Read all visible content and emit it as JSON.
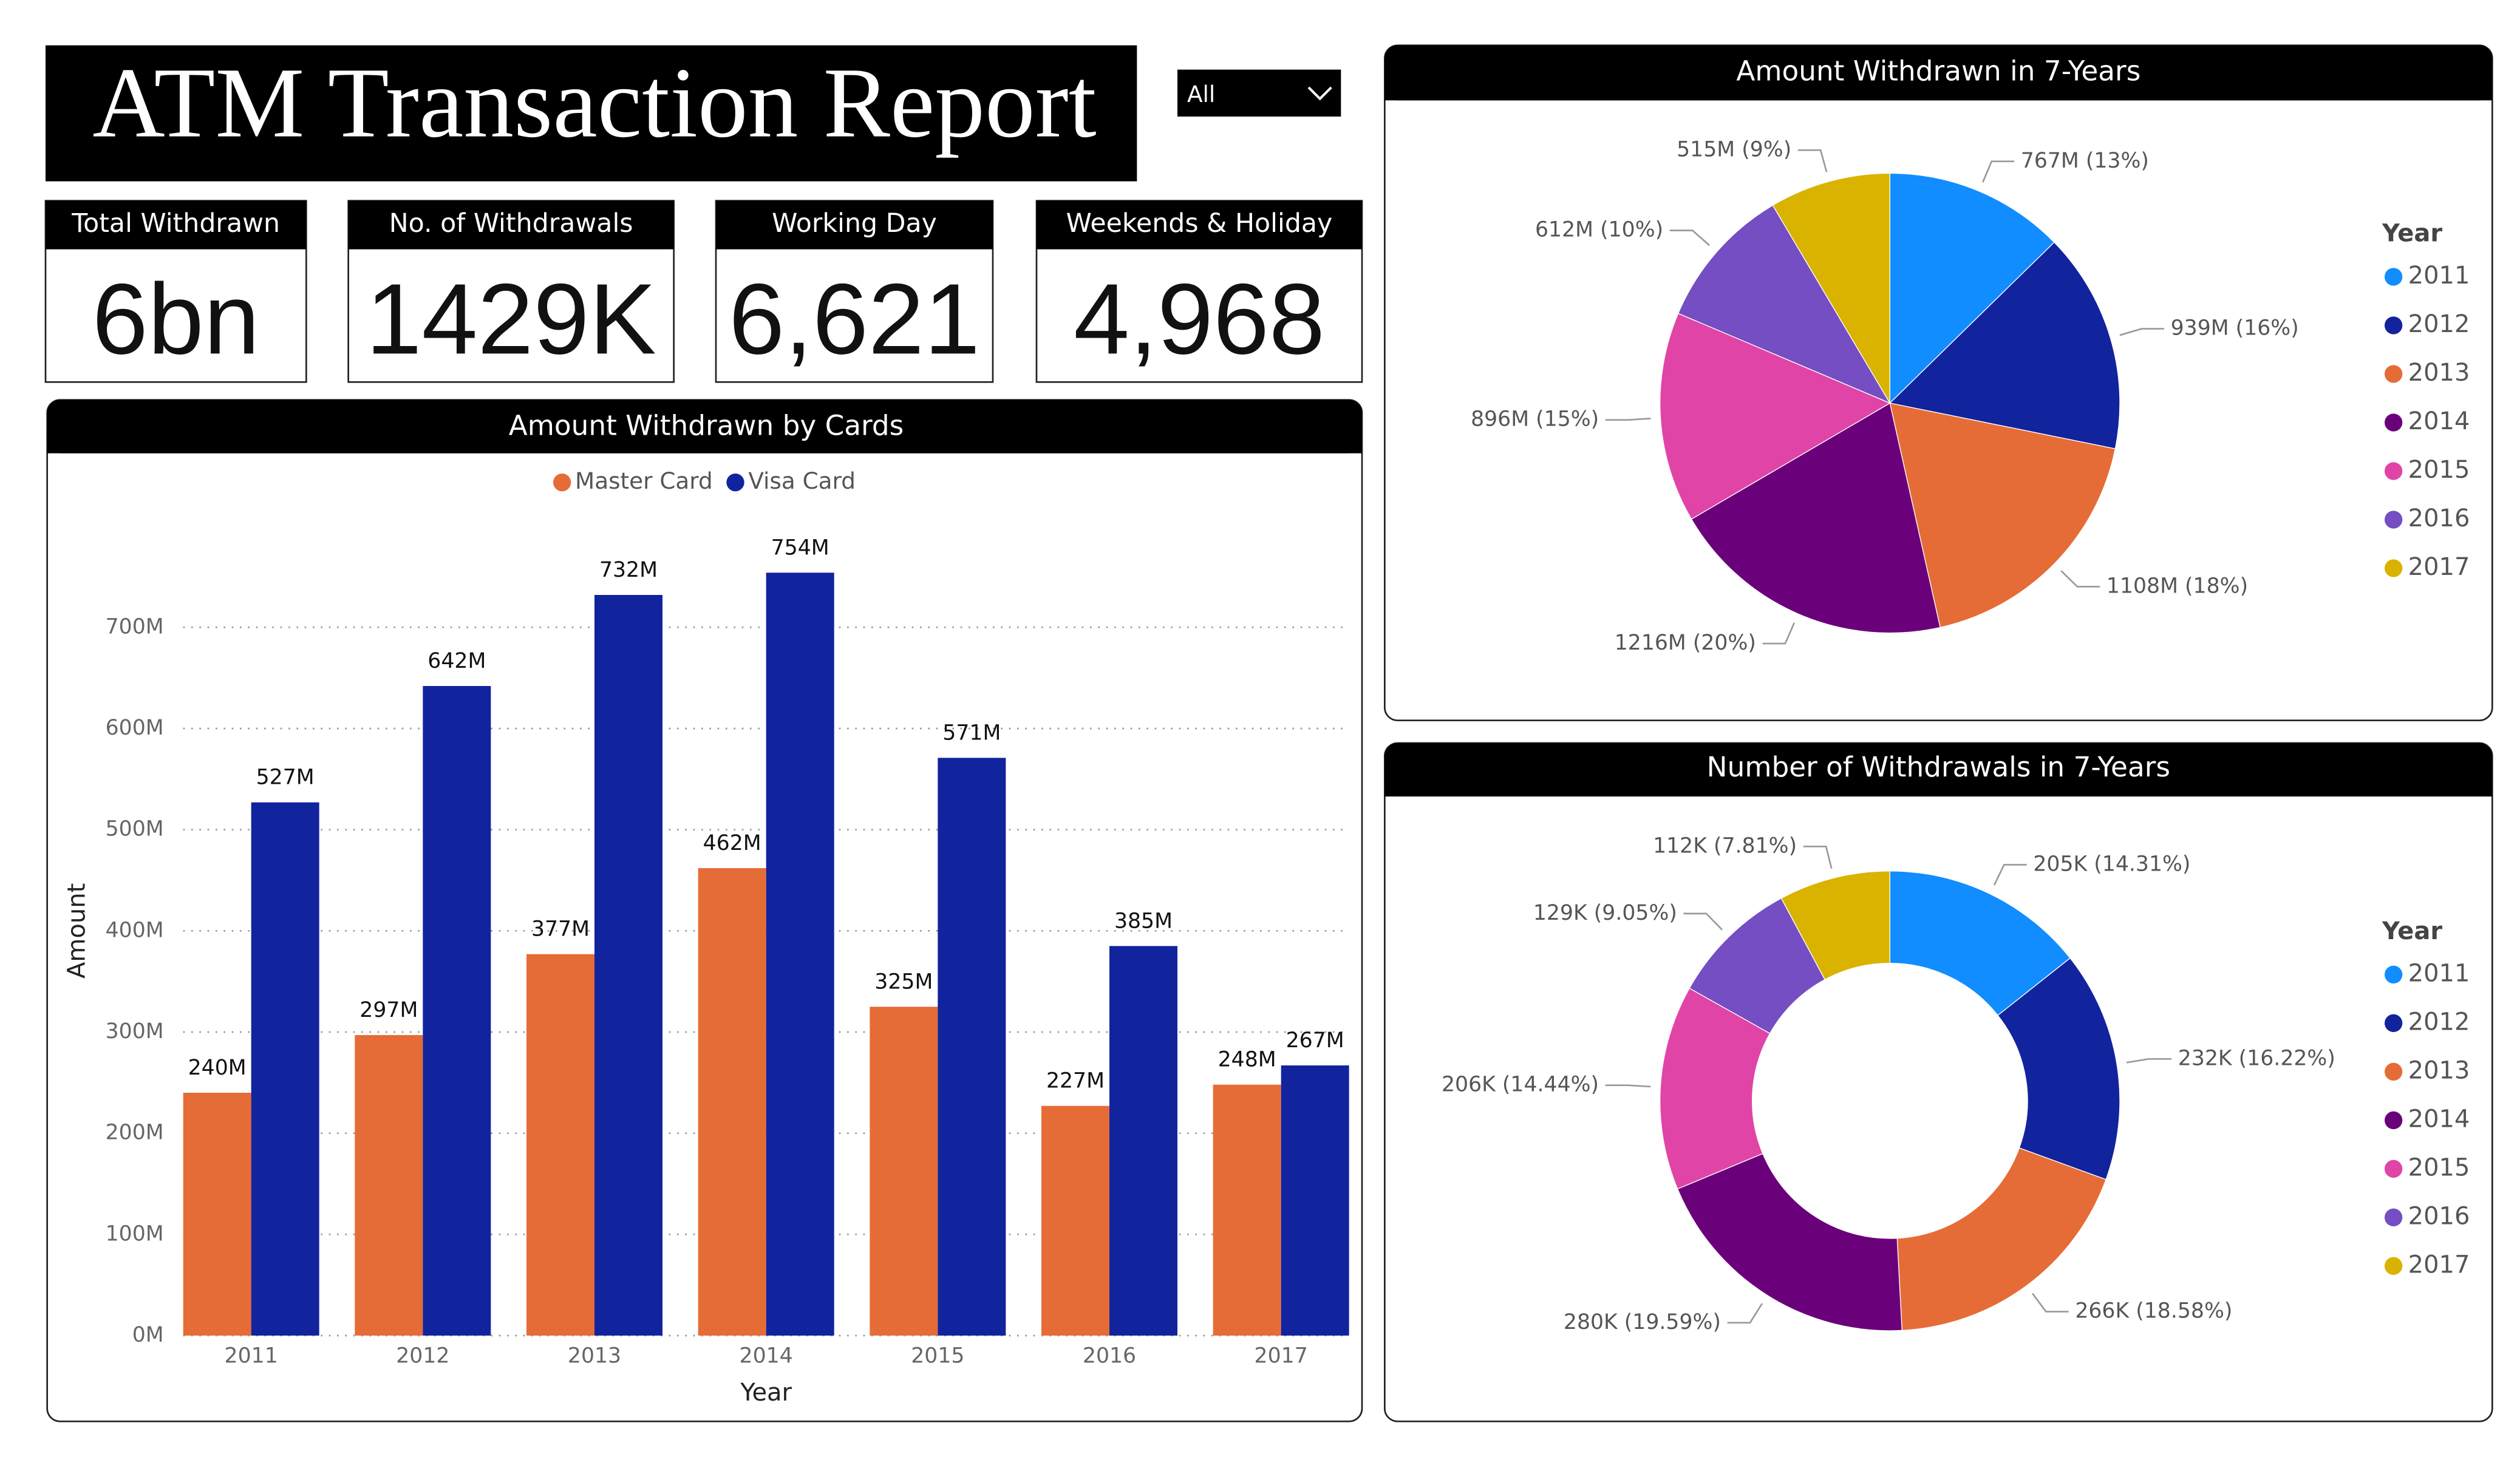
{
  "header": {
    "title": "ATM Transaction Report",
    "filter": "All"
  },
  "kpis": [
    {
      "label": "Total Withdrawn",
      "value": "6bn"
    },
    {
      "label": "No. of Withdrawals",
      "value": "1429K"
    },
    {
      "label": "Working Day",
      "value": "6,621"
    },
    {
      "label": "Weekends & Holiday",
      "value": "4,968"
    }
  ],
  "chart_data": [
    {
      "type": "bar",
      "title": "Amount Withdrawn by Cards",
      "x_label": "Year",
      "y_label": "Amount",
      "categories": [
        "2011",
        "2012",
        "2013",
        "2014",
        "2015",
        "2016",
        "2017"
      ],
      "series": [
        {
          "name": "Master Card",
          "color": "#E66C37",
          "values": [
            240000000,
            297000000,
            377000000,
            462000000,
            325000000,
            227000000,
            248000000
          ],
          "value_labels": [
            "240M",
            "297M",
            "377M",
            "462M",
            "325M",
            "227M",
            "248M"
          ]
        },
        {
          "name": "Visa Card",
          "color": "#12239E",
          "values": [
            527000000,
            642000000,
            732000000,
            754000000,
            571000000,
            385000000,
            267000000
          ],
          "value_labels": [
            "527M",
            "642M",
            "732M",
            "754M",
            "571M",
            "385M",
            "267M"
          ]
        }
      ],
      "ylim": [
        0,
        800000000
      ],
      "yticks": [
        {
          "value": 0,
          "label": "0M"
        },
        {
          "value": 100000000,
          "label": "100M"
        },
        {
          "value": 200000000,
          "label": "200M"
        },
        {
          "value": 300000000,
          "label": "300M"
        },
        {
          "value": 400000000,
          "label": "400M"
        },
        {
          "value": 500000000,
          "label": "500M"
        },
        {
          "value": 600000000,
          "label": "600M"
        },
        {
          "value": 700000000,
          "label": "700M"
        }
      ],
      "grid": true
    },
    {
      "type": "pie",
      "title": "Amount Withdrawn in 7-Years",
      "legend_title": "Year",
      "categories": [
        "2011",
        "2012",
        "2013",
        "2014",
        "2015",
        "2016",
        "2017"
      ],
      "colors": [
        "#118DFF",
        "#12239E",
        "#E66C37",
        "#6B007B",
        "#E044A7",
        "#744EC2",
        "#D9B300"
      ],
      "values": [
        767000000,
        939000000,
        1108000000,
        1216000000,
        896000000,
        612000000,
        515000000
      ],
      "value_labels": [
        "767M (13%)",
        "939M (16%)",
        "1108M (18%)",
        "1216M (20%)",
        "896M (15%)",
        "612M (10%)",
        "515M (9%)"
      ]
    },
    {
      "type": "donut",
      "title": "Number of Withdrawals in 7-Years",
      "legend_title": "Year",
      "categories": [
        "2011",
        "2012",
        "2013",
        "2014",
        "2015",
        "2016",
        "2017"
      ],
      "colors": [
        "#118DFF",
        "#12239E",
        "#E66C37",
        "#6B007B",
        "#E044A7",
        "#744EC2",
        "#D9B300"
      ],
      "values": [
        205000,
        232000,
        266000,
        280000,
        206000,
        129000,
        112000
      ],
      "value_labels": [
        "205K (14.31%)",
        "232K (16.22%)",
        "266K (18.58%)",
        "280K (19.59%)",
        "206K (14.44%)",
        "129K (9.05%)",
        "112K (7.81%)"
      ]
    }
  ]
}
